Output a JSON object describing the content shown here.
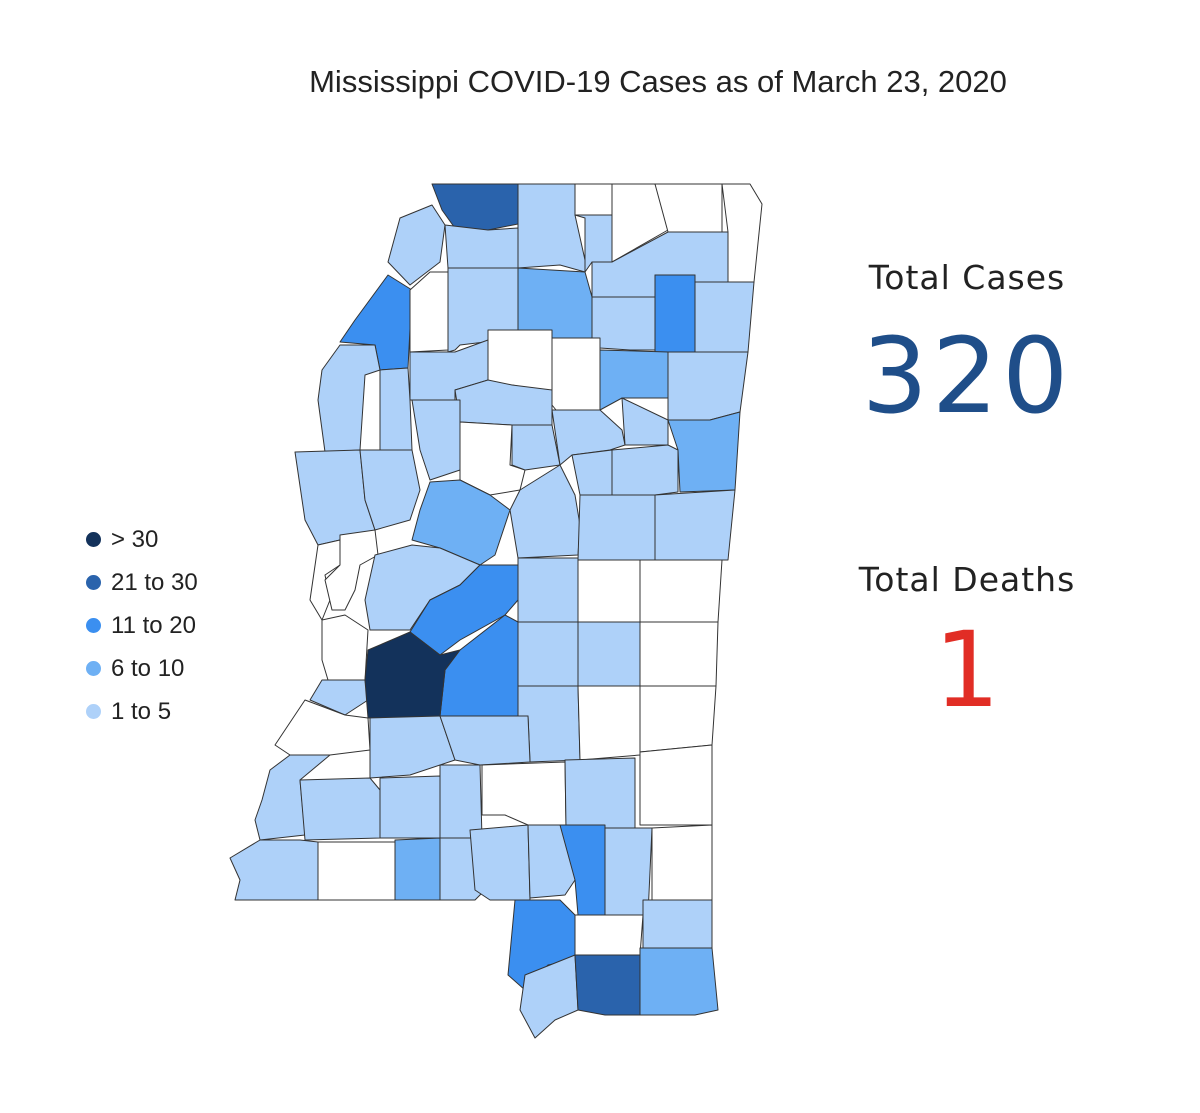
{
  "title": "Mississippi COVID-19 Cases as of March 23, 2020",
  "colors": {
    "gt30": "#13325b",
    "c21_30": "#2a63ac",
    "c11_20": "#3b8ff0",
    "c6_10": "#6eb0f4",
    "c1_5": "#aed1f9",
    "none": "#ffffff",
    "border": "#333333"
  },
  "legend": [
    {
      "label": "> 30",
      "class": "gt30"
    },
    {
      "label": "21 to 30",
      "class": "c21_30"
    },
    {
      "label": "11 to 20",
      "class": "c11_20"
    },
    {
      "label": "6 to 10",
      "class": "c6_10"
    },
    {
      "label": "1 to 5",
      "class": "c1_5"
    }
  ],
  "stats": {
    "total_cases_label": "Total Cases",
    "total_cases": "320",
    "total_deaths_label": "Total Deaths",
    "total_deaths": "1"
  }
}
